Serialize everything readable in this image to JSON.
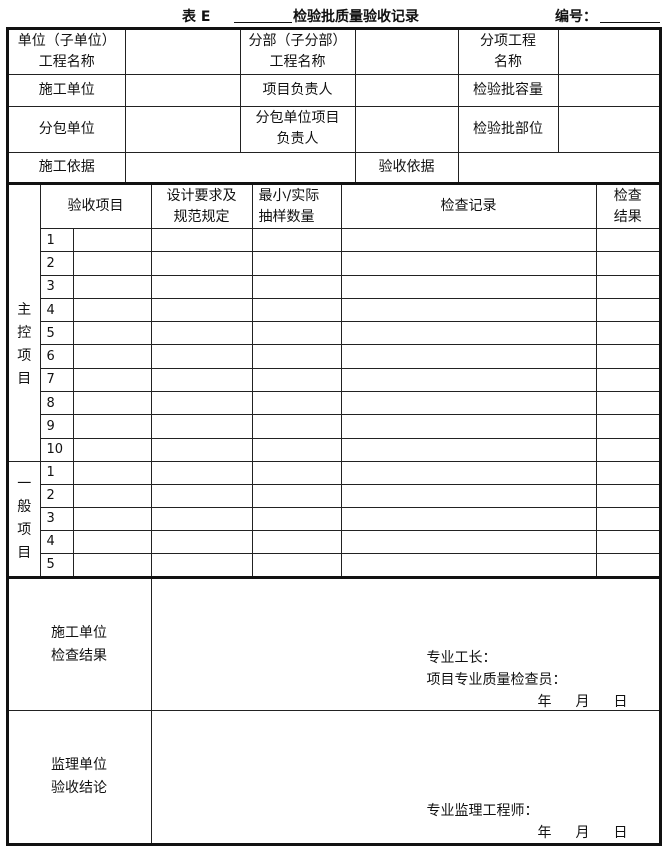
{
  "header": {
    "table_label": "表 E",
    "title": "检验批质量验收记录",
    "code_label": "编号："
  },
  "info": {
    "unit_project_name": "单位（子单位）\n工程名称",
    "division_project_name": "分部（子分部）\n工程名称",
    "item_project_name": "分项工程\n名称",
    "constructor": "施工单位",
    "project_leader": "项目负责人",
    "batch_capacity": "检验批容量",
    "subcontractor": "分包单位",
    "subcontractor_leader": "分包单位项目\n负责人",
    "batch_location": "检验批部位",
    "construction_basis": "施工依据",
    "acceptance_basis": "验收依据"
  },
  "inspection": {
    "headers": {
      "item": "验收项目",
      "design_req": "设计要求及\n规范规定",
      "sample": "最小/实际\n抽样数量",
      "record": "检查记录",
      "result": "检查\n结果"
    },
    "main_label": "主\n控\n项\n目",
    "general_label": "一\n般\n项\n目",
    "main_rows": [
      "1",
      "2",
      "3",
      "4",
      "5",
      "6",
      "7",
      "8",
      "9",
      "10"
    ],
    "general_rows": [
      "1",
      "2",
      "3",
      "4",
      "5"
    ]
  },
  "results": {
    "constructor_label": "施工单位\n检查结果",
    "foreman": "专业工长：",
    "quality_inspector": "项目专业质量检查员：",
    "supervisor_label": "监理单位\n验收结论",
    "supervisor_engineer": "专业监理工程师：",
    "year": "年",
    "month": "月",
    "day": "日"
  }
}
